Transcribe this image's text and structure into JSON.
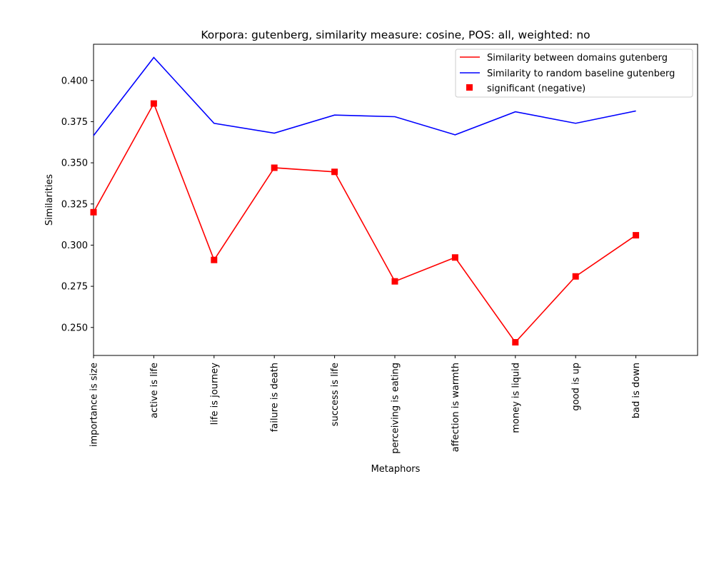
{
  "chart_data": {
    "type": "line",
    "title": "Korpora: gutenberg, similarity measure: cosine, POS: all, weighted: no",
    "xlabel": "Metaphors",
    "ylabel": "Similarities",
    "categories": [
      "importance is size",
      "active is life",
      "life is journey",
      "failure is death",
      "success is life",
      "perceiving is eating",
      "affection is warmth",
      "money is liquid",
      "good is up",
      "bad is down"
    ],
    "ylim": [
      0.233,
      0.422
    ],
    "yticks": [
      "0.250",
      "0.275",
      "0.300",
      "0.325",
      "0.350",
      "0.375",
      "0.400"
    ],
    "grid": false,
    "legend_position": "top-right",
    "series": [
      {
        "name": "Similarity between domains gutenberg",
        "color": "#ff0000",
        "values": [
          0.32,
          0.386,
          0.291,
          0.347,
          0.3445,
          0.278,
          0.2925,
          0.241,
          0.281,
          0.306
        ]
      },
      {
        "name": "Similarity to random baseline gutenberg",
        "color": "#0000ff",
        "values": [
          0.3665,
          0.414,
          0.374,
          0.368,
          0.379,
          0.378,
          0.367,
          0.381,
          0.374,
          0.3815
        ]
      }
    ],
    "markers": {
      "name": "significant (negative)",
      "color": "#ff0000",
      "shape": "square",
      "series_index": 0,
      "indices": [
        0,
        1,
        2,
        3,
        4,
        5,
        6,
        7,
        8,
        9
      ]
    }
  }
}
